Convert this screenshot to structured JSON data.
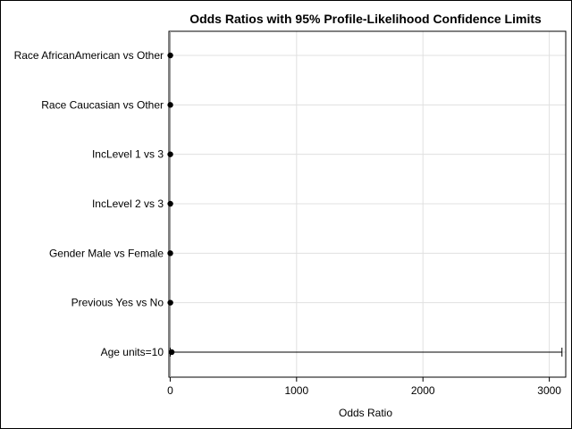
{
  "chart_data": {
    "type": "scatter",
    "title": "Odds Ratios with 95% Profile-Likelihood Confidence Limits",
    "xlabel": "Odds Ratio",
    "ylabel": "",
    "xlim": [
      -10,
      3130
    ],
    "xticks": [
      0,
      1000,
      2000,
      3000
    ],
    "grid": true,
    "legend": "none",
    "categories": [
      "Race AfricanAmerican vs Other",
      "Race Caucasian vs Other",
      "IncLevel 1 vs 3",
      "IncLevel 2 vs 3",
      "Gender Male vs Female",
      "Previous Yes vs No",
      "Age units=10"
    ],
    "series": [
      {
        "values": [
          1.1,
          1.2,
          1.0,
          1.3,
          0.9,
          1.5,
          12
        ],
        "lower": [
          null,
          null,
          null,
          null,
          null,
          null,
          0.5
        ],
        "upper": [
          null,
          null,
          null,
          null,
          null,
          null,
          3100
        ]
      }
    ],
    "colors": {
      "point": "#000000",
      "grid": "#e0e0e0",
      "reference_line": "#999999",
      "axis": "#000000"
    }
  }
}
